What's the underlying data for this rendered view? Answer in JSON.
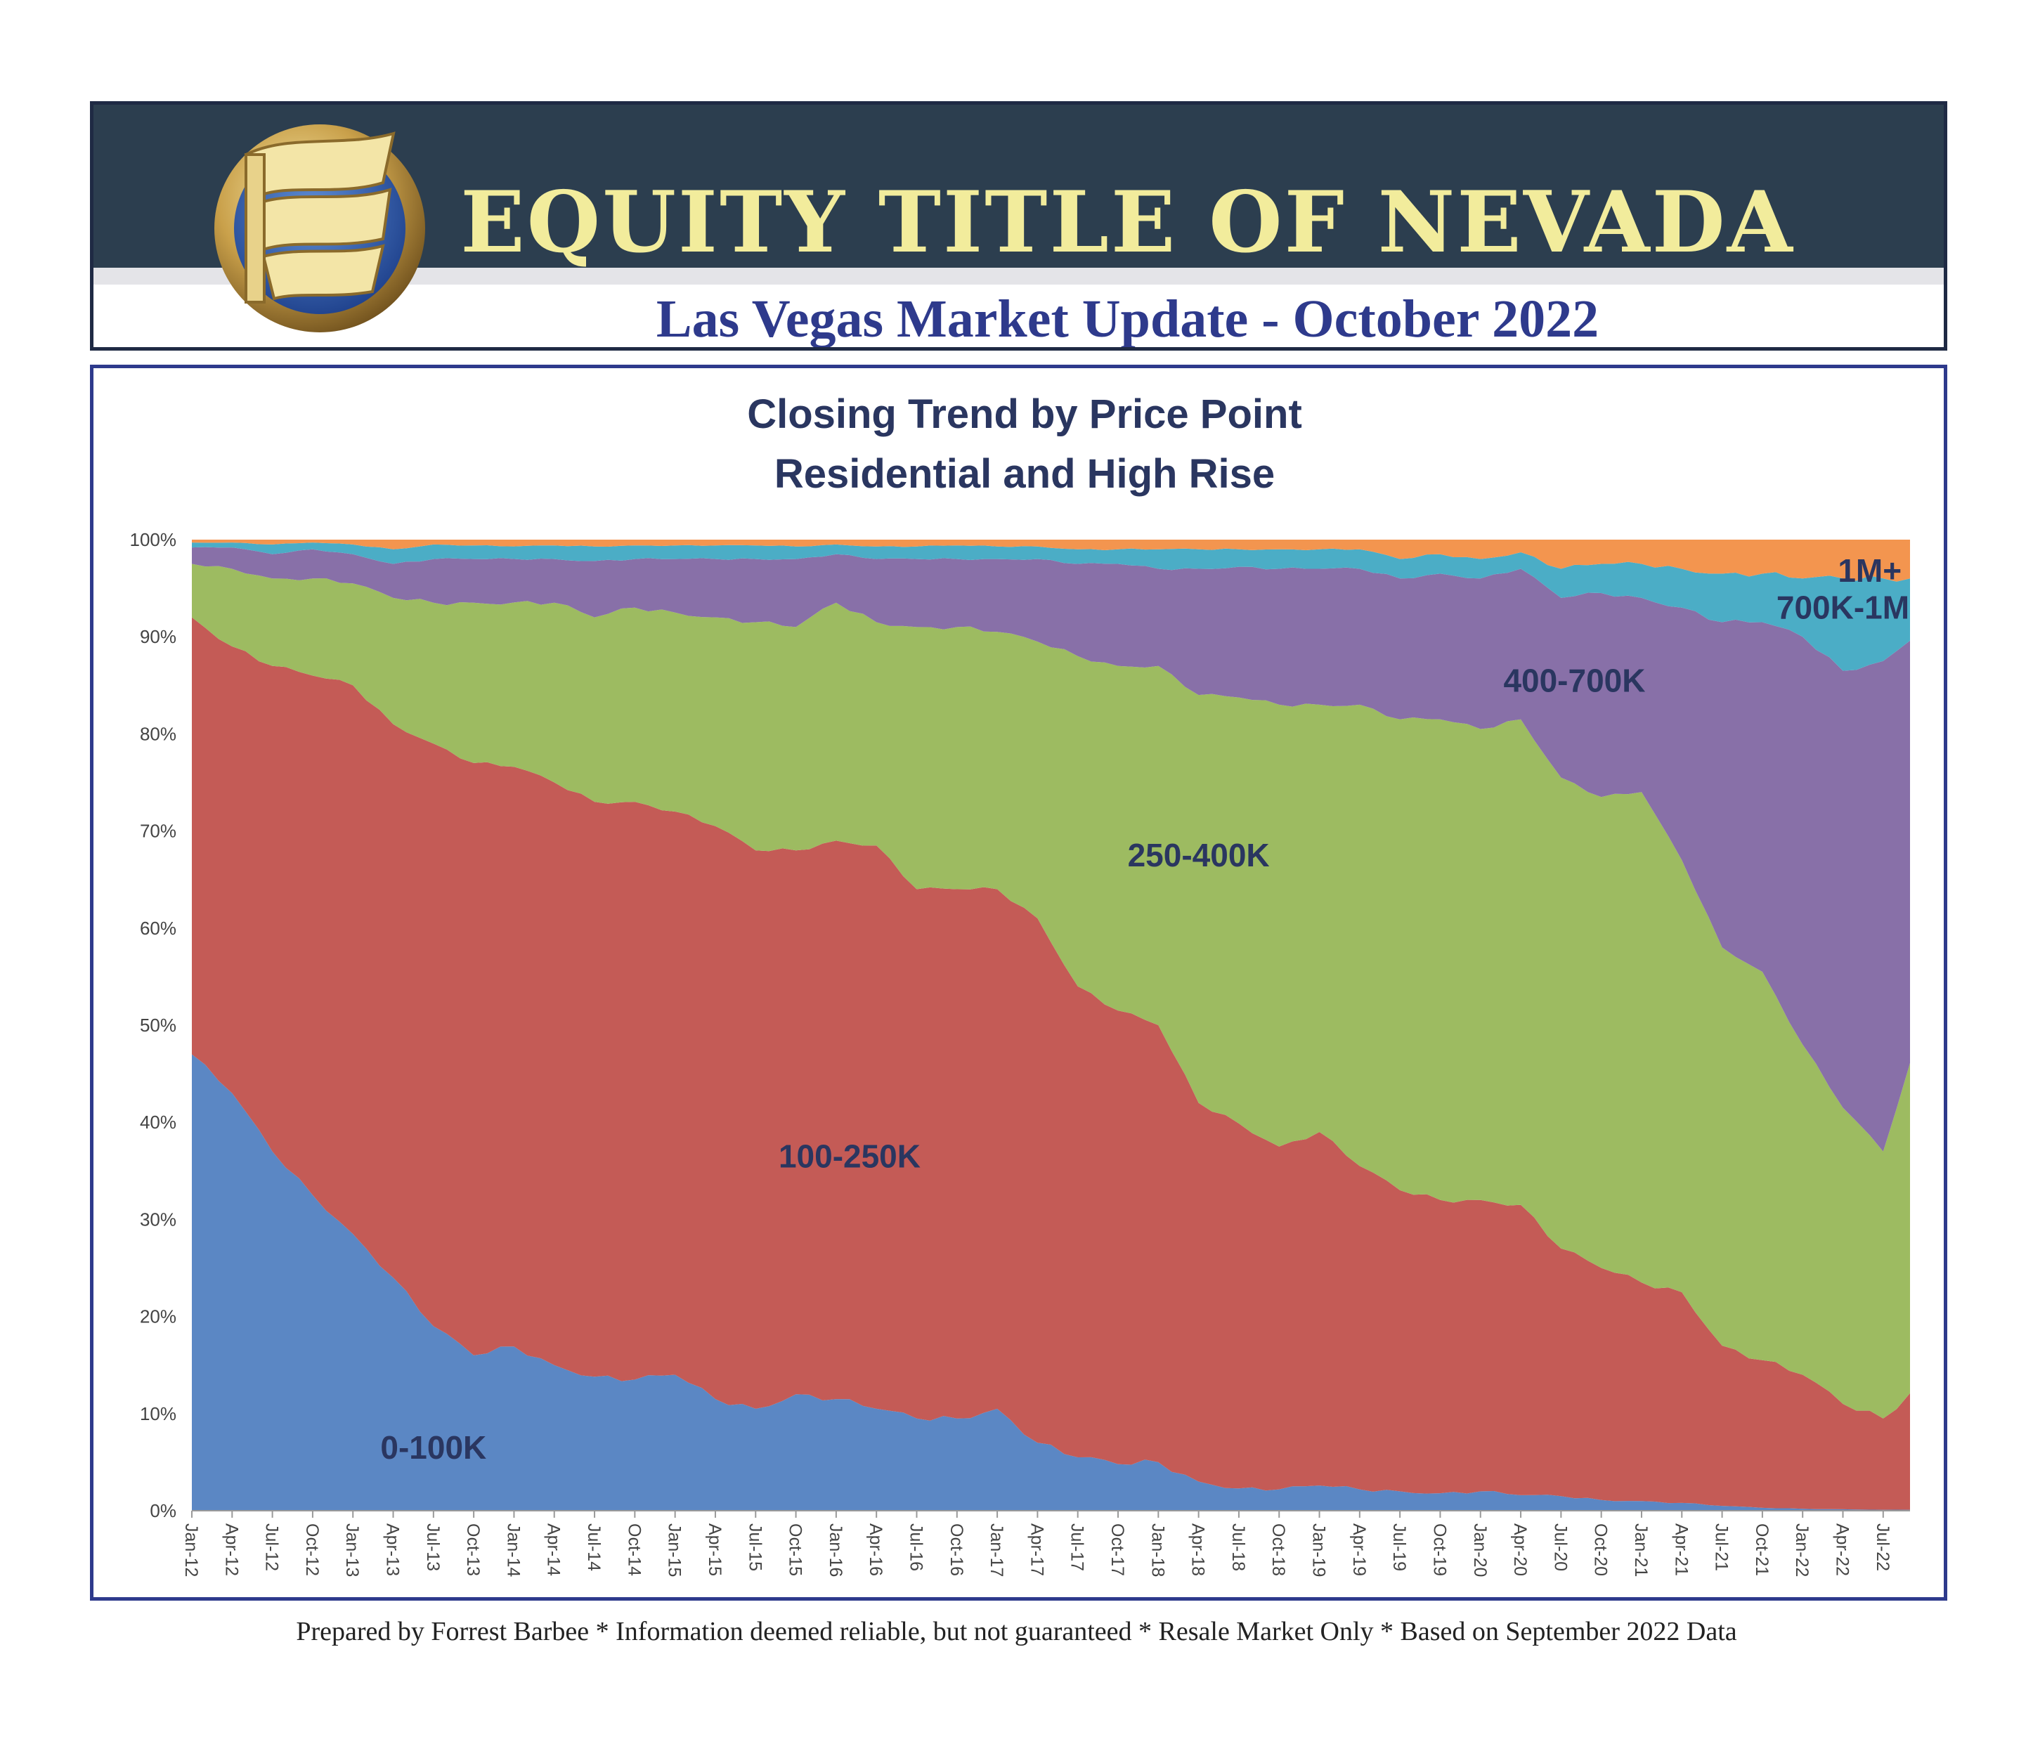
{
  "header": {
    "company_name": "EQUITY TITLE OF NEVADA",
    "subtitle": "Las Vegas Market Update - October 2022"
  },
  "footer_note": "Prepared by Forrest Barbee * Information deemed reliable, but not guaranteed * Resale Market Only * Based on September 2022 Data",
  "colors": {
    "0-100K": "#5b87c4",
    "100-250K": "#c45b56",
    "250-400K": "#9dbb61",
    "400-700K": "#8870a8",
    "700K-1M": "#4badc6",
    "1M+": "#f3954f",
    "label": "#2a3660"
  },
  "chart_data": {
    "type": "area",
    "stacked": true,
    "percent": true,
    "title": "Closing Trend by Price Point",
    "subtitle": "Residential and High Rise",
    "xlabel": "",
    "ylabel": "",
    "ylim": [
      0,
      100
    ],
    "y_ticks": [
      "0%",
      "10%",
      "20%",
      "30%",
      "40%",
      "50%",
      "60%",
      "70%",
      "80%",
      "90%",
      "100%"
    ],
    "x_start": "Jan-12",
    "x_tick_labels": [
      "Jan-12",
      "Apr-12",
      "Jul-12",
      "Oct-12",
      "Jan-13",
      "Apr-13",
      "Jul-13",
      "Oct-13",
      "Jan-14",
      "Apr-14",
      "Jul-14",
      "Oct-14",
      "Jan-15",
      "Apr-15",
      "Jul-15",
      "Oct-15",
      "Jan-16",
      "Apr-16",
      "Jul-16",
      "Oct-16",
      "Jan-17",
      "Apr-17",
      "Jul-17",
      "Oct-17",
      "Jan-18",
      "Apr-18",
      "Jul-18",
      "Oct-18",
      "Jan-19",
      "Apr-19",
      "Jul-19",
      "Oct-19",
      "Jan-20",
      "Apr-20",
      "Jul-20",
      "Oct-20",
      "Jan-21",
      "Apr-21",
      "Jul-21",
      "Oct-21",
      "Jan-22",
      "Apr-22",
      "Jul-22"
    ],
    "grid": false,
    "legend": "labels on areas",
    "series": [
      {
        "name": "0-100K",
        "points": [
          [
            "Jan-12",
            47
          ],
          [
            "Apr-12",
            43
          ],
          [
            "Jul-12",
            37
          ],
          [
            "Oct-12",
            32.5
          ],
          [
            "Jan-13",
            28.5
          ],
          [
            "Apr-13",
            24
          ],
          [
            "Jul-13",
            19
          ],
          [
            "Oct-13",
            16
          ],
          [
            "Jan-14",
            17
          ],
          [
            "Apr-14",
            15
          ],
          [
            "Jul-14",
            13.8
          ],
          [
            "Oct-14",
            13.5
          ],
          [
            "Jan-15",
            14
          ],
          [
            "Apr-15",
            11.5
          ],
          [
            "Jul-15",
            10.5
          ],
          [
            "Oct-15",
            12
          ],
          [
            "Jan-16",
            11.5
          ],
          [
            "Apr-16",
            10.5
          ],
          [
            "Jul-16",
            9.5
          ],
          [
            "Oct-16",
            9.5
          ],
          [
            "Jan-17",
            10.5
          ],
          [
            "Apr-17",
            7
          ],
          [
            "Jul-17",
            5.5
          ],
          [
            "Oct-17",
            4.8
          ],
          [
            "Jan-18",
            5
          ],
          [
            "Apr-18",
            3
          ],
          [
            "Jul-18",
            2.3
          ],
          [
            "Oct-18",
            2.2
          ],
          [
            "Jan-19",
            2.6
          ],
          [
            "Apr-19",
            2.2
          ],
          [
            "Jul-19",
            2
          ],
          [
            "Oct-19",
            1.8
          ],
          [
            "Jan-20",
            2
          ],
          [
            "Apr-20",
            1.6
          ],
          [
            "Jul-20",
            1.5
          ],
          [
            "Oct-20",
            1.1
          ],
          [
            "Jan-21",
            1
          ],
          [
            "Apr-21",
            0.8
          ],
          [
            "Jul-21",
            0.5
          ],
          [
            "Oct-21",
            0.3
          ],
          [
            "Jan-22",
            0.2
          ],
          [
            "Apr-22",
            0.15
          ],
          [
            "Jul-22",
            0.1
          ],
          [
            "Sep-22",
            0.1
          ]
        ]
      },
      {
        "name": "100-250K",
        "points": [
          [
            "Jan-12",
            45
          ],
          [
            "Apr-12",
            46
          ],
          [
            "Jul-12",
            50
          ],
          [
            "Oct-12",
            53.5
          ],
          [
            "Jan-13",
            56.5
          ],
          [
            "Apr-13",
            57
          ],
          [
            "Jul-13",
            60
          ],
          [
            "Oct-13",
            61
          ],
          [
            "Jan-14",
            60
          ],
          [
            "Apr-14",
            60
          ],
          [
            "Jul-14",
            59.2
          ],
          [
            "Oct-14",
            59.5
          ],
          [
            "Jan-15",
            58
          ],
          [
            "Apr-15",
            59
          ],
          [
            "Jul-15",
            57.5
          ],
          [
            "Oct-15",
            56
          ],
          [
            "Jan-16",
            57.5
          ],
          [
            "Apr-16",
            58
          ],
          [
            "Jul-16",
            54.5
          ],
          [
            "Oct-16",
            54.5
          ],
          [
            "Jan-17",
            53.5
          ],
          [
            "Apr-17",
            54
          ],
          [
            "Jul-17",
            48.5
          ],
          [
            "Oct-17",
            46.7
          ],
          [
            "Jan-18",
            45
          ],
          [
            "Apr-18",
            39
          ],
          [
            "Jul-18",
            37.7
          ],
          [
            "Oct-18",
            35.3
          ],
          [
            "Jan-19",
            36.4
          ],
          [
            "Apr-19",
            33.3
          ],
          [
            "Jul-19",
            31
          ],
          [
            "Oct-19",
            30.2
          ],
          [
            "Jan-20",
            30
          ],
          [
            "Apr-20",
            29.9
          ],
          [
            "Jul-20",
            25.5
          ],
          [
            "Oct-20",
            23.9
          ],
          [
            "Jan-21",
            22.5
          ],
          [
            "Apr-21",
            21.7
          ],
          [
            "Jul-21",
            16.5
          ],
          [
            "Oct-21",
            15.2
          ],
          [
            "Jan-22",
            13.8
          ],
          [
            "Apr-22",
            10.85
          ],
          [
            "Jul-22",
            9.4
          ],
          [
            "Sep-22",
            12
          ]
        ]
      },
      {
        "name": "250-400K",
        "points": [
          [
            "Jan-12",
            5.5
          ],
          [
            "Apr-12",
            8
          ],
          [
            "Jul-12",
            9
          ],
          [
            "Oct-12",
            10
          ],
          [
            "Jan-13",
            10.5
          ],
          [
            "Apr-13",
            13
          ],
          [
            "Jul-13",
            14.5
          ],
          [
            "Oct-13",
            16.5
          ],
          [
            "Jan-14",
            17
          ],
          [
            "Apr-14",
            18.5
          ],
          [
            "Jul-14",
            19
          ],
          [
            "Oct-14",
            20
          ],
          [
            "Jan-15",
            20.5
          ],
          [
            "Apr-15",
            21.5
          ],
          [
            "Jul-15",
            23.5
          ],
          [
            "Oct-15",
            23
          ],
          [
            "Jan-16",
            24.5
          ],
          [
            "Apr-16",
            23
          ],
          [
            "Jul-16",
            27
          ],
          [
            "Oct-16",
            27
          ],
          [
            "Jan-17",
            26.5
          ],
          [
            "Apr-17",
            28.5
          ],
          [
            "Jul-17",
            34
          ],
          [
            "Oct-17",
            35.5
          ],
          [
            "Jan-18",
            37
          ],
          [
            "Apr-18",
            42
          ],
          [
            "Jul-18",
            44
          ],
          [
            "Oct-18",
            45.5
          ],
          [
            "Jan-19",
            44
          ],
          [
            "Apr-19",
            47.5
          ],
          [
            "Jul-19",
            48.5
          ],
          [
            "Oct-19",
            49.5
          ],
          [
            "Jan-20",
            48.5
          ],
          [
            "Apr-20",
            50
          ],
          [
            "Jul-20",
            48.5
          ],
          [
            "Oct-20",
            48.5
          ],
          [
            "Jan-21",
            50.5
          ],
          [
            "Apr-21",
            44.5
          ],
          [
            "Jul-21",
            41
          ],
          [
            "Oct-21",
            40
          ],
          [
            "Jan-22",
            34
          ],
          [
            "Apr-22",
            30.5
          ],
          [
            "Jul-22",
            27.5
          ],
          [
            "Sep-22",
            34
          ]
        ]
      },
      {
        "name": "400-700K",
        "points": [
          [
            "Jan-12",
            1.7
          ],
          [
            "Apr-12",
            2.2
          ],
          [
            "Jul-12",
            2.5
          ],
          [
            "Oct-12",
            3
          ],
          [
            "Jan-13",
            3
          ],
          [
            "Apr-13",
            3.5
          ],
          [
            "Jul-13",
            4.5
          ],
          [
            "Oct-13",
            4.5
          ],
          [
            "Jan-14",
            4.5
          ],
          [
            "Apr-14",
            4.5
          ],
          [
            "Jul-14",
            5.8
          ],
          [
            "Oct-14",
            5
          ],
          [
            "Jan-15",
            5.5
          ],
          [
            "Apr-15",
            6
          ],
          [
            "Jul-15",
            6.5
          ],
          [
            "Oct-15",
            7
          ],
          [
            "Jan-16",
            5
          ],
          [
            "Apr-16",
            6.5
          ],
          [
            "Jul-16",
            7
          ],
          [
            "Oct-16",
            7
          ],
          [
            "Jan-17",
            7.5
          ],
          [
            "Apr-17",
            8.5
          ],
          [
            "Jul-17",
            9.5
          ],
          [
            "Oct-17",
            10.5
          ],
          [
            "Jan-18",
            10
          ],
          [
            "Apr-18",
            13
          ],
          [
            "Jul-18",
            13.5
          ],
          [
            "Oct-18",
            14
          ],
          [
            "Jan-19",
            14
          ],
          [
            "Apr-19",
            14
          ],
          [
            "Jul-19",
            14.5
          ],
          [
            "Oct-19",
            15
          ],
          [
            "Jan-20",
            15.5
          ],
          [
            "Apr-20",
            15.5
          ],
          [
            "Jul-20",
            18.5
          ],
          [
            "Oct-20",
            21
          ],
          [
            "Jan-21",
            20
          ],
          [
            "Apr-21",
            26
          ],
          [
            "Jul-21",
            33.5
          ],
          [
            "Oct-21",
            36
          ],
          [
            "Jan-22",
            42
          ],
          [
            "Apr-22",
            45
          ],
          [
            "Jul-22",
            50.5
          ],
          [
            "Sep-22",
            43.5
          ]
        ]
      },
      {
        "name": "700K-1M",
        "points": [
          [
            "Jan-12",
            0.5
          ],
          [
            "Apr-12",
            0.5
          ],
          [
            "Jul-12",
            1
          ],
          [
            "Oct-12",
            0.7
          ],
          [
            "Jan-13",
            1
          ],
          [
            "Apr-13",
            1.5
          ],
          [
            "Jul-13",
            1.5
          ],
          [
            "Oct-13",
            1.4
          ],
          [
            "Jan-14",
            1.3
          ],
          [
            "Apr-14",
            1.4
          ],
          [
            "Jul-14",
            1.5
          ],
          [
            "Oct-14",
            1.4
          ],
          [
            "Jan-15",
            1.4
          ],
          [
            "Apr-15",
            1.4
          ],
          [
            "Jul-15",
            1.4
          ],
          [
            "Oct-15",
            1.3
          ],
          [
            "Jan-16",
            1
          ],
          [
            "Apr-16",
            1.3
          ],
          [
            "Jul-16",
            1.3
          ],
          [
            "Oct-16",
            1.4
          ],
          [
            "Jan-17",
            1.3
          ],
          [
            "Apr-17",
            1.3
          ],
          [
            "Jul-17",
            1.5
          ],
          [
            "Oct-17",
            1.5
          ],
          [
            "Jan-18",
            2
          ],
          [
            "Apr-18",
            2
          ],
          [
            "Jul-18",
            1.8
          ],
          [
            "Oct-18",
            2
          ],
          [
            "Jan-19",
            2
          ],
          [
            "Apr-19",
            2
          ],
          [
            "Jul-19",
            2
          ],
          [
            "Oct-19",
            2
          ],
          [
            "Jan-20",
            2
          ],
          [
            "Apr-20",
            1.7
          ],
          [
            "Jul-20",
            3
          ],
          [
            "Oct-20",
            3
          ],
          [
            "Jan-21",
            3.5
          ],
          [
            "Apr-21",
            4
          ],
          [
            "Jul-21",
            5
          ],
          [
            "Oct-21",
            5
          ],
          [
            "Jan-22",
            6
          ],
          [
            "Apr-22",
            9.5
          ],
          [
            "Jul-22",
            8.5
          ],
          [
            "Sep-22",
            6.4
          ]
        ]
      },
      {
        "name": "1M+",
        "points": [
          [
            "Jan-12",
            0.3
          ],
          [
            "Apr-12",
            0.3
          ],
          [
            "Jul-12",
            0.5
          ],
          [
            "Oct-12",
            0.3
          ],
          [
            "Jan-13",
            0.5
          ],
          [
            "Apr-13",
            1
          ],
          [
            "Jul-13",
            0.5
          ],
          [
            "Oct-13",
            0.6
          ],
          [
            "Jan-14",
            0.7
          ],
          [
            "Apr-14",
            0.6
          ],
          [
            "Jul-14",
            0.7
          ],
          [
            "Oct-14",
            0.6
          ],
          [
            "Jan-15",
            0.6
          ],
          [
            "Apr-15",
            0.6
          ],
          [
            "Jul-15",
            0.6
          ],
          [
            "Oct-15",
            0.7
          ],
          [
            "Jan-16",
            0.5
          ],
          [
            "Apr-16",
            0.7
          ],
          [
            "Jul-16",
            0.7
          ],
          [
            "Oct-16",
            0.6
          ],
          [
            "Jan-17",
            0.7
          ],
          [
            "Apr-17",
            0.7
          ],
          [
            "Jul-17",
            1
          ],
          [
            "Oct-17",
            1
          ],
          [
            "Jan-18",
            1
          ],
          [
            "Apr-18",
            1
          ],
          [
            "Jul-18",
            1
          ],
          [
            "Oct-18",
            1
          ],
          [
            "Jan-19",
            1
          ],
          [
            "Apr-19",
            1
          ],
          [
            "Jul-19",
            2
          ],
          [
            "Oct-19",
            1.5
          ],
          [
            "Jan-20",
            2
          ],
          [
            "Apr-20",
            1.3
          ],
          [
            "Jul-20",
            3
          ],
          [
            "Oct-20",
            2.5
          ],
          [
            "Jan-21",
            2.5
          ],
          [
            "Apr-21",
            3
          ],
          [
            "Jul-21",
            3.5
          ],
          [
            "Oct-21",
            3.5
          ],
          [
            "Jan-22",
            4
          ],
          [
            "Apr-22",
            4
          ],
          [
            "Jul-22",
            4
          ],
          [
            "Sep-22",
            4
          ]
        ]
      }
    ],
    "annotations": [
      "0-100K",
      "100-250K",
      "250-400K",
      "400-700K",
      "700K-1M",
      "1M+"
    ]
  }
}
